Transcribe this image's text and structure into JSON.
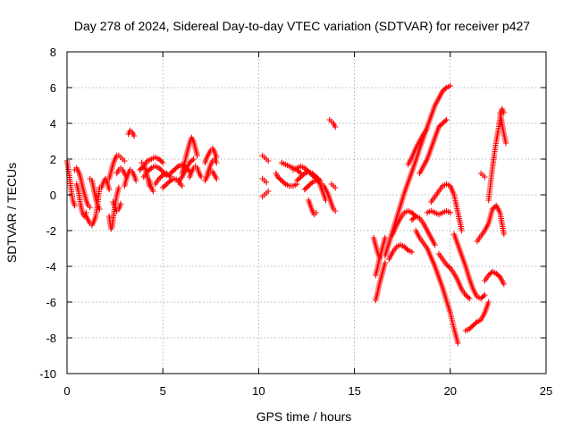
{
  "chart_data": {
    "type": "scatter",
    "title": "Day 278 of 2024, Sidereal Day-to-day VTEC variation (SDTVAR) for receiver p427",
    "xlabel": "GPS time / hours",
    "ylabel": "SDTVAR / TECUs",
    "xlim": [
      0,
      25
    ],
    "ylim": [
      -10,
      8
    ],
    "xticks": [
      0,
      5,
      10,
      15,
      20,
      25
    ],
    "yticks": [
      -10,
      -8,
      -6,
      -4,
      -2,
      0,
      2,
      4,
      6,
      8
    ],
    "grid": true,
    "marker": "plus",
    "color": "#ff0000",
    "segments": [
      {
        "name": "arc-0a",
        "x": [
          0.0,
          0.1,
          0.2,
          0.3,
          0.4
        ],
        "y": [
          1.9,
          1.2,
          0.4,
          -0.3,
          -0.6
        ]
      },
      {
        "name": "arc-0b",
        "x": [
          0.4,
          0.5,
          0.6,
          0.7,
          0.8,
          0.9,
          1.0,
          1.1,
          1.2
        ],
        "y": [
          1.4,
          1.5,
          1.3,
          1.0,
          0.5,
          0.1,
          -0.3,
          -0.6,
          -0.7
        ]
      },
      {
        "name": "arc-1a",
        "x": [
          0.5,
          0.6,
          0.7,
          0.8,
          0.9,
          1.0
        ],
        "y": [
          0.6,
          0.2,
          -0.5,
          -1.0,
          -1.2,
          -1.0
        ]
      },
      {
        "name": "arc-1b",
        "x": [
          1.0,
          1.1,
          1.2,
          1.3,
          1.4,
          1.5,
          1.6,
          1.7
        ],
        "y": [
          -1.2,
          -1.4,
          -1.6,
          -1.7,
          -1.5,
          -1.2,
          -0.5,
          0.4
        ]
      },
      {
        "name": "arc-1c",
        "x": [
          1.2,
          1.3,
          1.4,
          1.5,
          1.6,
          1.7
        ],
        "y": [
          0.9,
          0.8,
          0.3,
          -0.2,
          -0.6,
          -0.8
        ]
      },
      {
        "name": "arc-2a",
        "x": [
          1.8,
          1.9,
          2.0,
          2.1,
          2.2
        ],
        "y": [
          0.4,
          0.7,
          0.9,
          0.7,
          0.3
        ]
      },
      {
        "name": "arc-2b",
        "x": [
          2.2,
          2.25,
          2.3,
          2.35,
          2.4,
          2.5,
          2.6,
          2.7
        ],
        "y": [
          -1.2,
          -1.6,
          -1.9,
          -1.8,
          -1.4,
          -0.6,
          0.0,
          0.4
        ]
      },
      {
        "name": "arc-2c",
        "x": [
          2.2,
          2.3,
          2.4,
          2.5,
          2.6,
          2.7,
          2.8,
          2.9,
          3.0
        ],
        "y": [
          0.9,
          1.3,
          1.7,
          2.0,
          2.2,
          2.2,
          2.1,
          2.0,
          1.9
        ]
      },
      {
        "name": "arc-2d",
        "x": [
          2.4,
          2.5,
          2.6,
          2.7,
          2.8
        ],
        "y": [
          -0.4,
          -0.7,
          -0.9,
          -0.8,
          -0.5
        ]
      },
      {
        "name": "arc-2e",
        "x": [
          2.6,
          2.7,
          2.8,
          2.9,
          3.0,
          3.1
        ],
        "y": [
          1.2,
          1.4,
          1.5,
          1.4,
          1.2,
          1.0
        ]
      },
      {
        "name": "arc-3a",
        "x": [
          3.2,
          3.3,
          3.4,
          3.5
        ],
        "y": [
          3.4,
          3.6,
          3.5,
          3.3
        ]
      },
      {
        "name": "arc-3b",
        "x": [
          3.0,
          3.1,
          3.2,
          3.3,
          3.4,
          3.5,
          3.6
        ],
        "y": [
          0.5,
          0.9,
          1.2,
          1.4,
          1.3,
          1.1,
          0.8
        ]
      },
      {
        "name": "arc-3c",
        "x": [
          3.9,
          4.0,
          4.1,
          4.2,
          4.3
        ],
        "y": [
          1.8,
          1.7,
          1.4,
          1.0,
          0.5
        ]
      },
      {
        "name": "arc-4a",
        "x": [
          3.8,
          4.0,
          4.2,
          4.4,
          4.6,
          4.8,
          5.0
        ],
        "y": [
          1.4,
          1.6,
          1.9,
          2.0,
          2.1,
          2.0,
          1.8
        ]
      },
      {
        "name": "arc-4b",
        "x": [
          4.0,
          4.2,
          4.4,
          4.6,
          4.8,
          5.0,
          5.2
        ],
        "y": [
          1.0,
          1.3,
          1.5,
          1.6,
          1.5,
          1.3,
          1.1
        ]
      },
      {
        "name": "arc-4c",
        "x": [
          4.3,
          4.4,
          4.5
        ],
        "y": [
          0.8,
          0.4,
          0.2
        ]
      },
      {
        "name": "arc-4d",
        "x": [
          4.6,
          4.8,
          5.0,
          5.2,
          5.4
        ],
        "y": [
          0.6,
          0.9,
          1.1,
          1.2,
          1.0
        ]
      },
      {
        "name": "arc-5a",
        "x": [
          5.0,
          5.2,
          5.4,
          5.6,
          5.8,
          6.0
        ],
        "y": [
          0.4,
          0.6,
          0.8,
          0.9,
          0.8,
          0.5
        ]
      },
      {
        "name": "arc-5b",
        "x": [
          5.4,
          5.6,
          5.8,
          6.0,
          6.2,
          6.4
        ],
        "y": [
          1.2,
          1.4,
          1.6,
          1.7,
          1.5,
          1.3
        ]
      },
      {
        "name": "arc-5c",
        "x": [
          5.8,
          6.0,
          6.2,
          6.4,
          6.6
        ],
        "y": [
          0.7,
          1.0,
          1.4,
          1.8,
          2.0
        ]
      },
      {
        "name": "arc-6a",
        "x": [
          6.0,
          6.1,
          6.2,
          6.3,
          6.4,
          6.5,
          6.6,
          6.7,
          6.8
        ],
        "y": [
          1.2,
          1.6,
          2.1,
          2.5,
          2.9,
          3.2,
          3.0,
          2.6,
          2.2
        ]
      },
      {
        "name": "arc-6b",
        "x": [
          6.4,
          6.5,
          6.6,
          6.7,
          6.8,
          6.9,
          7.0
        ],
        "y": [
          1.0,
          1.3,
          1.5,
          1.6,
          1.5,
          1.2,
          1.0
        ]
      },
      {
        "name": "arc-7a",
        "x": [
          7.2,
          7.3,
          7.4,
          7.5,
          7.6,
          7.7,
          7.8
        ],
        "y": [
          1.8,
          2.1,
          2.3,
          2.5,
          2.6,
          2.4,
          2.1
        ]
      },
      {
        "name": "arc-7b",
        "x": [
          7.3,
          7.4,
          7.5,
          7.6,
          7.7,
          7.8
        ],
        "y": [
          1.1,
          1.4,
          1.7,
          1.9,
          2.0,
          1.8
        ]
      },
      {
        "name": "arc-7c",
        "x": [
          7.2,
          7.3,
          7.4,
          7.5,
          7.6,
          7.7,
          7.8
        ],
        "y": [
          0.8,
          1.0,
          1.2,
          1.3,
          1.3,
          1.1,
          0.9
        ]
      },
      {
        "name": "arc-10a",
        "x": [
          10.2,
          10.3,
          10.4,
          10.5
        ],
        "y": [
          2.2,
          2.1,
          2.0,
          1.9
        ]
      },
      {
        "name": "arc-10b",
        "x": [
          10.2,
          10.3,
          10.4
        ],
        "y": [
          0.9,
          0.8,
          0.7
        ]
      },
      {
        "name": "arc-10c",
        "x": [
          10.2,
          10.3,
          10.4,
          10.5
        ],
        "y": [
          -0.1,
          0.0,
          0.1,
          0.2
        ]
      },
      {
        "name": "arc-11a",
        "x": [
          10.9,
          11.0,
          11.2,
          11.4,
          11.6,
          11.8,
          12.0
        ],
        "y": [
          1.2,
          1.0,
          0.8,
          0.6,
          0.5,
          0.5,
          0.6
        ]
      },
      {
        "name": "arc-11b",
        "x": [
          11.2,
          11.4,
          11.6,
          11.8,
          12.0,
          12.2
        ],
        "y": [
          1.8,
          1.7,
          1.6,
          1.5,
          1.4,
          1.2
        ]
      },
      {
        "name": "arc-12a",
        "x": [
          11.8,
          12.0,
          12.2,
          12.4,
          12.6,
          12.8,
          13.0
        ],
        "y": [
          1.4,
          1.5,
          1.6,
          1.5,
          1.3,
          1.1,
          0.9
        ]
      },
      {
        "name": "arc-12b",
        "x": [
          12.0,
          12.2,
          12.4,
          12.6,
          12.8,
          13.0,
          13.2
        ],
        "y": [
          0.8,
          1.0,
          1.2,
          1.3,
          1.2,
          1.0,
          0.8
        ]
      },
      {
        "name": "arc-12c",
        "x": [
          12.4,
          12.6,
          12.8,
          13.0,
          13.2
        ],
        "y": [
          0.3,
          0.5,
          0.7,
          0.8,
          0.7
        ]
      },
      {
        "name": "arc-13a",
        "x": [
          12.6,
          12.7,
          12.8,
          12.9,
          13.0
        ],
        "y": [
          -0.3,
          -0.6,
          -0.9,
          -1.1,
          -1.0
        ]
      },
      {
        "name": "arc-13b",
        "x": [
          13.0,
          13.1,
          13.2,
          13.3,
          13.4,
          13.5
        ],
        "y": [
          1.0,
          0.9,
          0.6,
          0.3,
          0.0,
          -0.3
        ]
      },
      {
        "name": "arc-13c",
        "x": [
          13.3,
          13.4,
          13.5,
          13.6,
          13.7,
          13.8,
          13.9,
          14.0
        ],
        "y": [
          0.6,
          0.5,
          0.3,
          0.1,
          -0.2,
          -0.5,
          -0.8,
          -0.9
        ]
      },
      {
        "name": "arc-13d",
        "x": [
          13.8,
          13.9,
          14.0
        ],
        "y": [
          0.6,
          0.5,
          0.4
        ]
      },
      {
        "name": "arc-13e",
        "x": [
          13.7,
          13.8,
          13.9,
          14.0
        ],
        "y": [
          4.2,
          4.1,
          4.0,
          3.8
        ]
      },
      {
        "name": "arc-16a",
        "x": [
          16.0,
          16.1,
          16.2,
          16.3,
          16.4
        ],
        "y": [
          -2.4,
          -2.8,
          -3.2,
          -3.5,
          -3.4
        ]
      },
      {
        "name": "arc-16b",
        "x": [
          16.1,
          16.2,
          16.3,
          16.4,
          16.5,
          16.6
        ],
        "y": [
          -4.5,
          -4.1,
          -3.6,
          -3.2,
          -2.8,
          -2.4
        ]
      },
      {
        "name": "arc-16c",
        "x": [
          16.1,
          16.2,
          16.3,
          16.4,
          16.5,
          16.6
        ],
        "y": [
          -5.9,
          -5.5,
          -5.0,
          -4.6,
          -4.2,
          -3.8
        ]
      },
      {
        "name": "arc-16d",
        "x": [
          16.6,
          16.8,
          17.0,
          17.2,
          17.4,
          17.6,
          17.8,
          18.0,
          18.2,
          18.4,
          18.6,
          18.8,
          19.0,
          19.2,
          19.4,
          19.6,
          19.8,
          20.0
        ],
        "y": [
          -3.4,
          -2.7,
          -2.0,
          -1.3,
          -0.6,
          0.1,
          0.7,
          1.3,
          1.9,
          2.6,
          3.2,
          3.8,
          4.4,
          5.0,
          5.4,
          5.8,
          6.0,
          6.1
        ]
      },
      {
        "name": "arc-17a",
        "x": [
          16.8,
          17.0,
          17.2,
          17.4,
          17.6,
          17.8,
          18.0
        ],
        "y": [
          -3.6,
          -3.2,
          -2.9,
          -2.8,
          -2.9,
          -3.1,
          -3.2
        ]
      },
      {
        "name": "arc-17b",
        "x": [
          17.0,
          17.2,
          17.4,
          17.6,
          17.8,
          18.0,
          18.2
        ],
        "y": [
          -2.2,
          -1.7,
          -1.3,
          -1.0,
          -0.9,
          -1.0,
          -1.2
        ]
      },
      {
        "name": "arc-18a",
        "x": [
          17.8,
          18.0,
          18.2,
          18.4,
          18.6,
          18.8
        ],
        "y": [
          1.7,
          2.1,
          2.6,
          3.0,
          3.4,
          3.7
        ]
      },
      {
        "name": "arc-18b",
        "x": [
          18.4,
          18.6,
          18.8,
          19.0,
          19.2,
          19.4,
          19.6,
          19.8
        ],
        "y": [
          1.2,
          1.6,
          2.0,
          2.6,
          3.2,
          3.8,
          4.0,
          4.2
        ]
      },
      {
        "name": "arc-18c",
        "x": [
          18.2,
          18.4,
          18.6,
          18.8,
          19.0,
          19.2,
          19.4,
          19.6,
          19.8,
          20.0,
          20.2,
          20.4
        ],
        "y": [
          -2.0,
          -2.4,
          -2.7,
          -3.0,
          -3.5,
          -4.0,
          -4.6,
          -5.2,
          -5.9,
          -6.6,
          -7.5,
          -8.3
        ]
      },
      {
        "name": "arc-18d",
        "x": [
          18.0,
          18.2,
          18.4,
          18.6,
          18.8,
          19.0,
          19.2
        ],
        "y": [
          -1.4,
          -1.2,
          -1.3,
          -1.6,
          -2.0,
          -2.4,
          -2.8
        ]
      },
      {
        "name": "arc-19a",
        "x": [
          18.8,
          19.0,
          19.2,
          19.4,
          19.6,
          19.8,
          20.0
        ],
        "y": [
          -1.0,
          -0.9,
          -1.0,
          -1.1,
          -1.0,
          -0.9,
          -1.0
        ]
      },
      {
        "name": "arc-19b",
        "x": [
          19.0,
          19.2,
          19.4,
          19.6,
          19.8,
          20.0,
          20.2,
          20.4,
          20.6
        ],
        "y": [
          -0.4,
          -0.1,
          0.2,
          0.5,
          0.6,
          0.5,
          0.0,
          -1.0,
          -2.0
        ]
      },
      {
        "name": "arc-19c",
        "x": [
          19.4,
          19.6,
          19.8,
          20.0,
          20.2,
          20.4,
          20.6,
          20.8,
          21.0
        ],
        "y": [
          -3.3,
          -3.6,
          -3.9,
          -4.1,
          -4.4,
          -4.8,
          -5.3,
          -5.6,
          -5.8
        ]
      },
      {
        "name": "arc-20a",
        "x": [
          20.2,
          20.4,
          20.6,
          20.8,
          21.0,
          21.2,
          21.4,
          21.6,
          21.8
        ],
        "y": [
          -2.2,
          -2.8,
          -3.4,
          -4.0,
          -4.7,
          -5.3,
          -5.7,
          -5.8,
          -5.6
        ]
      },
      {
        "name": "arc-21a",
        "x": [
          20.8,
          21.0,
          21.2,
          21.4,
          21.6,
          21.8,
          22.0
        ],
        "y": [
          -7.6,
          -7.5,
          -7.3,
          -7.1,
          -7.0,
          -6.6,
          -6.0
        ]
      },
      {
        "name": "arc-21b",
        "x": [
          21.6,
          21.7,
          21.8
        ],
        "y": [
          1.2,
          1.1,
          1.0
        ]
      },
      {
        "name": "arc-21c",
        "x": [
          21.4,
          21.6,
          21.8,
          22.0,
          22.2,
          22.4,
          22.6,
          22.8
        ],
        "y": [
          -2.6,
          -2.3,
          -2.0,
          -1.6,
          -0.8,
          -0.6,
          -1.0,
          -2.2
        ]
      },
      {
        "name": "arc-22a",
        "x": [
          21.8,
          22.0,
          22.2,
          22.4,
          22.6,
          22.8
        ],
        "y": [
          -4.8,
          -4.5,
          -4.3,
          -4.4,
          -4.6,
          -5.0
        ]
      },
      {
        "name": "arc-22b",
        "x": [
          22.0,
          22.1,
          22.2,
          22.3,
          22.4,
          22.5,
          22.6,
          22.7,
          22.8
        ],
        "y": [
          -0.3,
          0.6,
          1.5,
          2.3,
          3.0,
          3.6,
          4.3,
          4.8,
          4.6
        ]
      },
      {
        "name": "arc-22c",
        "x": [
          22.6,
          22.7,
          22.8,
          22.9
        ],
        "y": [
          4.6,
          4.0,
          3.4,
          2.9
        ]
      }
    ]
  }
}
